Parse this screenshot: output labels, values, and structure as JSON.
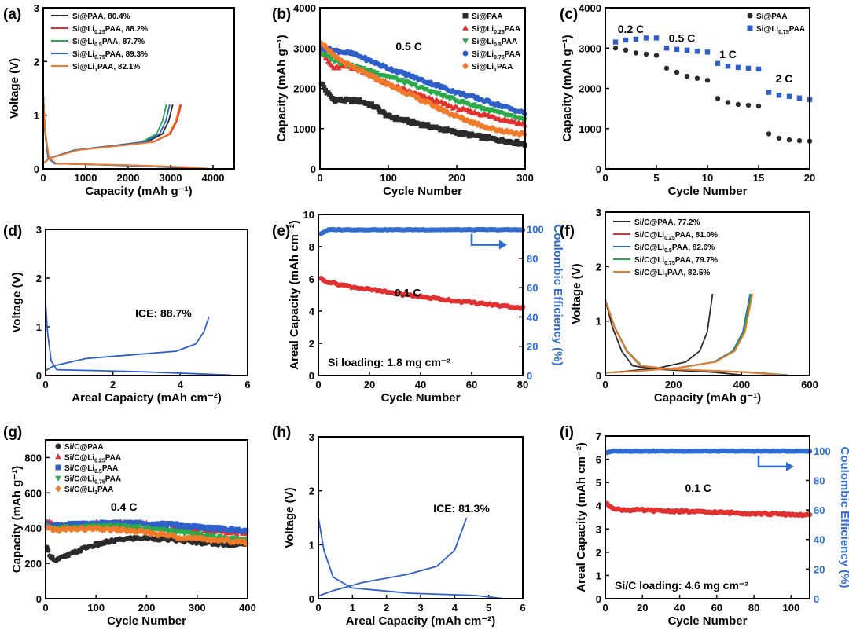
{
  "colors": {
    "Si@PAA": "#2b2b2b",
    "Li0.25": "#e03030",
    "Li0.5": "#2aa84a",
    "Li0.75": "#2f5fc8",
    "Li1": "#f07a2a",
    "ce": "#2f6bd0",
    "sic_blue": "#2f5fc8",
    "sic_green": "#2aa84a"
  },
  "chart_data": [
    {
      "id": "a",
      "label": "(a)",
      "type": "line",
      "xlabel": "Capacity (mAh g⁻¹)",
      "ylabel": "Voltage (V)",
      "xlim": [
        0,
        4500
      ],
      "ylim": [
        0,
        3
      ],
      "xticks": [
        0,
        1000,
        2000,
        3000,
        4000
      ],
      "yticks": [
        0,
        1,
        2,
        3
      ],
      "legend": [
        "Si@PAA, 80.4%",
        "Si@Li0.25PAA, 88.2%",
        "Si@Li0.5PAA, 87.7%",
        "Si@Li0.75PAA, 89.3%",
        "Si@Li1PAA, 82.1%"
      ],
      "series": [
        {
          "name": "Si@PAA",
          "color": "Si@PAA",
          "charge_end": 3050,
          "discharge_end": 3800
        },
        {
          "name": "Si@Li0.25PAA",
          "color": "Li0.25",
          "charge_end": 3250,
          "discharge_end": 3700
        },
        {
          "name": "Si@Li0.5PAA",
          "color": "Li0.5",
          "charge_end": 2900,
          "discharge_end": 3300
        },
        {
          "name": "Si@Li0.75PAA",
          "color": "Li0.75",
          "charge_end": 2980,
          "discharge_end": 3350
        },
        {
          "name": "Si@Li1PAA",
          "color": "Li1",
          "charge_end": 3220,
          "discharge_end": 3900
        }
      ]
    },
    {
      "id": "b",
      "label": "(b)",
      "type": "scatter",
      "xlabel": "Cycle Number",
      "ylabel": "Capacity (mAh g⁻¹)",
      "xlim": [
        0,
        300
      ],
      "ylim": [
        0,
        4000
      ],
      "xticks": [
        0,
        100,
        200,
        300
      ],
      "yticks": [
        0,
        1000,
        2000,
        3000,
        4000
      ],
      "annotation": "0.5 C",
      "legend": [
        "Si@PAA",
        "Si@Li0.25PAA",
        "Si@Li0.5PAA",
        "Si@Li0.75PAA",
        "Si@Li1PAA"
      ],
      "series": [
        {
          "name": "Si@PAA",
          "color": "Si@PAA",
          "marker": "square",
          "points": [
            [
              0,
              2200
            ],
            [
              10,
              1900
            ],
            [
              20,
              1720
            ],
            [
              40,
              1700
            ],
            [
              60,
              1680
            ],
            [
              80,
              1550
            ],
            [
              100,
              1300
            ],
            [
              150,
              1100
            ],
            [
              200,
              900
            ],
            [
              250,
              750
            ],
            [
              300,
              620
            ]
          ]
        },
        {
          "name": "Si@Li0.25PAA",
          "color": "Li0.25",
          "marker": "triangle",
          "points": [
            [
              0,
              3000
            ],
            [
              10,
              2700
            ],
            [
              20,
              2500
            ],
            [
              40,
              2550
            ],
            [
              60,
              2450
            ],
            [
              100,
              2100
            ],
            [
              150,
              1800
            ],
            [
              200,
              1500
            ],
            [
              250,
              1300
            ],
            [
              300,
              1100
            ]
          ]
        },
        {
          "name": "Si@Li0.5PAA",
          "color": "Li0.5",
          "marker": "triangle-down",
          "points": [
            [
              0,
              2900
            ],
            [
              20,
              2700
            ],
            [
              50,
              2550
            ],
            [
              100,
              2300
            ],
            [
              150,
              2000
            ],
            [
              200,
              1700
            ],
            [
              250,
              1450
            ],
            [
              300,
              1200
            ]
          ]
        },
        {
          "name": "Si@Li0.75PAA",
          "color": "Li0.75",
          "marker": "circle",
          "points": [
            [
              0,
              3000
            ],
            [
              20,
              2950
            ],
            [
              50,
              2850
            ],
            [
              100,
              2500
            ],
            [
              150,
              2200
            ],
            [
              200,
              1900
            ],
            [
              250,
              1650
            ],
            [
              300,
              1380
            ]
          ]
        },
        {
          "name": "Si@Li1PAA",
          "color": "Li1",
          "marker": "diamond",
          "points": [
            [
              0,
              3200
            ],
            [
              20,
              2800
            ],
            [
              50,
              2500
            ],
            [
              100,
              2100
            ],
            [
              150,
              1700
            ],
            [
              200,
              1300
            ],
            [
              250,
              1000
            ],
            [
              300,
              850
            ]
          ]
        }
      ]
    },
    {
      "id": "c",
      "label": "(c)",
      "type": "scatter",
      "xlabel": "Cycle Number",
      "ylabel": "Capacity (mAh g⁻¹)",
      "xlim": [
        0,
        20
      ],
      "ylim": [
        0,
        4000
      ],
      "xticks": [
        0,
        5,
        10,
        15,
        20
      ],
      "yticks": [
        0,
        1000,
        2000,
        3000,
        4000
      ],
      "rates": [
        "0.2 C",
        "0.5 C",
        "1 C",
        "2 C"
      ],
      "legend": [
        "Si@PAA",
        "Si@Li0.75PAA"
      ],
      "series": [
        {
          "name": "Si@PAA",
          "color": "Si@PAA",
          "marker": "circle",
          "values": [
            3000,
            2950,
            2880,
            2850,
            2820,
            2500,
            2400,
            2300,
            2250,
            2200,
            1750,
            1650,
            1600,
            1580,
            1560,
            870,
            760,
            720,
            700,
            690
          ]
        },
        {
          "name": "Si@Li0.75PAA",
          "color": "Li0.75",
          "marker": "square",
          "values": [
            3150,
            3200,
            3220,
            3250,
            3250,
            3000,
            2970,
            2950,
            2920,
            2900,
            2620,
            2550,
            2520,
            2500,
            2480,
            1900,
            1830,
            1800,
            1760,
            1720
          ]
        }
      ]
    },
    {
      "id": "d",
      "label": "(d)",
      "type": "line",
      "xlabel": "Areal Capaicty (mAh cm⁻²)",
      "ylabel": "Voltage (V)",
      "xlim": [
        0,
        6
      ],
      "ylim": [
        0,
        3
      ],
      "xticks": [
        0,
        2,
        4,
        6
      ],
      "yticks": [
        0,
        1,
        2,
        3
      ],
      "annotation": "ICE: 88.7%",
      "series": [
        {
          "name": "Si@Li0.75PAA",
          "color": "Li0.75",
          "charge_end": 4.85,
          "discharge_end": 5.5
        }
      ]
    },
    {
      "id": "e",
      "label": "(e)",
      "type": "scatter",
      "xlabel": "Cycle Number",
      "ylabel": "Areal Capacity (mAh cm⁻²)",
      "y2label": "Coulombic Efficiency (%)",
      "xlim": [
        0,
        80
      ],
      "ylim": [
        0,
        10
      ],
      "y2lim": [
        0,
        110
      ],
      "xticks": [
        0,
        20,
        40,
        60,
        80
      ],
      "yticks": [
        0,
        2,
        4,
        6,
        8,
        10
      ],
      "y2ticks": [
        0,
        20,
        40,
        60,
        80,
        100
      ],
      "annotation": "0.1 C",
      "footnote": "Si loading: 1.8 mg cm⁻²",
      "series": [
        {
          "name": "Areal capacity",
          "color": "Li0.25",
          "start": 6.0,
          "end": 4.2
        },
        {
          "name": "Coulombic efficiency",
          "color": "ce",
          "start": 96,
          "end": 99.6
        }
      ]
    },
    {
      "id": "f",
      "label": "(f)",
      "type": "line",
      "xlabel": "Capacity (mAh g⁻¹)",
      "ylabel": "Voltage (V)",
      "xlim": [
        0,
        600
      ],
      "ylim": [
        0,
        3
      ],
      "xticks": [
        0,
        200,
        400,
        600
      ],
      "yticks": [
        0,
        1,
        2,
        3
      ],
      "legend": [
        "Si/C@PAA, 77.2%",
        "Si/C@Li0.25PAA, 81.0%",
        "Si/C@Li0.5PAA, 82.6%",
        "Si/C@Li0.75PAA, 79.7%",
        "Si/C@Li1PAA, 82.5%"
      ],
      "series": [
        {
          "name": "Si/C@PAA",
          "color": "Si@PAA",
          "charge_end": 315,
          "discharge_end": 400
        },
        {
          "name": "Si/C@Li0.25PAA",
          "color": "Li0.25",
          "charge_end": 430,
          "discharge_end": 530
        },
        {
          "name": "Si/C@Li0.5PAA",
          "color": "Li0.75",
          "charge_end": 425,
          "discharge_end": 515
        },
        {
          "name": "Si/C@Li0.75PAA",
          "color": "Li0.5",
          "charge_end": 428,
          "discharge_end": 535
        },
        {
          "name": "Si/C@Li1PAA",
          "color": "Li1",
          "charge_end": 432,
          "discharge_end": 520
        }
      ]
    },
    {
      "id": "g",
      "label": "(g)",
      "type": "scatter",
      "xlabel": "Cycle Number",
      "ylabel": "Capacity (mAh g⁻¹)",
      "xlim": [
        0,
        400
      ],
      "ylim": [
        0,
        900
      ],
      "xticks": [
        0,
        100,
        200,
        300,
        400
      ],
      "yticks": [
        0,
        200,
        400,
        600,
        800
      ],
      "annotation": "0.4 C",
      "legend": [
        "Si/C@PAA",
        "Si/C@Li0.25PAA",
        "Si/C@Li0.5PAA",
        "Si/C@Li0.75PAA",
        "Si/C@Li1PAA"
      ],
      "series": [
        {
          "name": "Si/C@PAA",
          "color": "Si@PAA",
          "marker": "circle",
          "points": [
            [
              0,
              300
            ],
            [
              10,
              240
            ],
            [
              20,
              220
            ],
            [
              40,
              240
            ],
            [
              80,
              290
            ],
            [
              120,
              320
            ],
            [
              160,
              340
            ],
            [
              200,
              345
            ],
            [
              250,
              335
            ],
            [
              300,
              320
            ],
            [
              350,
              310
            ],
            [
              400,
              305
            ]
          ]
        },
        {
          "name": "Si/C@Li0.25PAA",
          "color": "Li0.25",
          "marker": "triangle",
          "points": [
            [
              0,
              450
            ],
            [
              20,
              410
            ],
            [
              60,
              420
            ],
            [
              100,
              430
            ],
            [
              150,
              430
            ],
            [
              200,
              425
            ],
            [
              250,
              415
            ],
            [
              300,
              395
            ],
            [
              350,
              380
            ],
            [
              400,
              370
            ]
          ]
        },
        {
          "name": "Si/C@Li0.5PAA",
          "color": "Li0.75",
          "marker": "square",
          "points": [
            [
              0,
              420
            ],
            [
              20,
              415
            ],
            [
              60,
              420
            ],
            [
              100,
              425
            ],
            [
              150,
              428
            ],
            [
              200,
              425
            ],
            [
              250,
              420
            ],
            [
              300,
              405
            ],
            [
              350,
              395
            ],
            [
              400,
              385
            ]
          ]
        },
        {
          "name": "Si/C@Li0.75PAA",
          "color": "Li0.5",
          "marker": "triangle-down",
          "points": [
            [
              0,
              410
            ],
            [
              20,
              400
            ],
            [
              60,
              405
            ],
            [
              100,
              410
            ],
            [
              150,
              410
            ],
            [
              200,
              400
            ],
            [
              250,
              385
            ],
            [
              300,
              365
            ],
            [
              350,
              345
            ],
            [
              400,
              335
            ]
          ]
        },
        {
          "name": "Si/C@Li1PAA",
          "color": "Li1",
          "marker": "diamond",
          "points": [
            [
              0,
              400
            ],
            [
              20,
              390
            ],
            [
              60,
              395
            ],
            [
              100,
              395
            ],
            [
              150,
              390
            ],
            [
              200,
              375
            ],
            [
              250,
              355
            ],
            [
              300,
              340
            ],
            [
              350,
              330
            ],
            [
              400,
              320
            ]
          ]
        }
      ]
    },
    {
      "id": "h",
      "label": "(h)",
      "type": "line",
      "xlabel": "Areal Capacity (mAh cm⁻²)",
      "ylabel": "Voltage (V)",
      "xlim": [
        0,
        6
      ],
      "ylim": [
        0,
        3
      ],
      "xticks": [
        0,
        1,
        2,
        3,
        4,
        5,
        6
      ],
      "yticks": [
        0,
        1,
        2,
        3
      ],
      "annotation": "ICE: 81.3%",
      "series": [
        {
          "name": "Si/C@Li0.5PAA",
          "color": "sic_blue",
          "charge_end": 4.35,
          "discharge_end": 5.4
        }
      ]
    },
    {
      "id": "i",
      "label": "(i)",
      "type": "scatter",
      "xlabel": "Cycle Number",
      "ylabel": "Areal Capacity (mAh cm⁻²)",
      "y2label": "Coulombic Efficiency (%)",
      "xlim": [
        0,
        110
      ],
      "ylim": [
        0,
        7
      ],
      "y2lim": [
        0,
        110
      ],
      "xticks": [
        0,
        20,
        40,
        60,
        80,
        100
      ],
      "yticks": [
        0,
        1,
        2,
        3,
        4,
        5,
        6,
        7
      ],
      "y2ticks": [
        0,
        20,
        40,
        60,
        80,
        100
      ],
      "annotation": "0.1 C",
      "footnote": "Si/C loading: 4.6 mg cm⁻²",
      "series": [
        {
          "name": "Areal capacity",
          "color": "Li0.25",
          "start": 4.1,
          "end": 3.6
        },
        {
          "name": "Coulombic efficiency",
          "color": "ce",
          "start": 98.5,
          "end": 99.8
        }
      ]
    }
  ]
}
